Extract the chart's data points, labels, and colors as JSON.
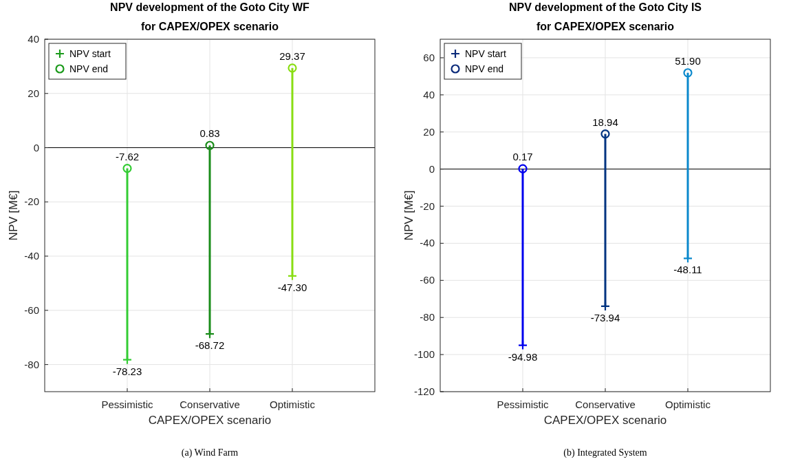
{
  "chart_data": [
    {
      "type": "bar",
      "title": "NPV development of the Goto City WF\nfor CAPEX/OPEX scenario",
      "xlabel": "CAPEX/OPEX scenario",
      "ylabel": "NPV [M€]",
      "categories": [
        "Pessimistic",
        "Conservative",
        "Optimistic"
      ],
      "ylim": [
        -90,
        40
      ],
      "yticks": [
        -80,
        -60,
        -40,
        -20,
        0,
        20,
        40
      ],
      "grid": true,
      "legend": "top left",
      "ref_lines": [
        {
          "axis": "y",
          "value": 0,
          "color": "#000000"
        }
      ],
      "annotations": [
        "(a) Wind Farm"
      ],
      "series": [
        {
          "colors": [
            "#33cc33",
            "#1a8c1a",
            "#88dd11"
          ],
          "base": [
            -78.23,
            -68.72,
            -47.3
          ],
          "values": [
            70.61,
            69.55,
            76.67
          ]
        },
        {
          "type": "scatter",
          "name": "NPV start",
          "marker": "cross",
          "color": "#1a9a1a",
          "colors": [
            "#33cc33",
            "#1a8c1a",
            "#88dd11"
          ],
          "x": [
            "Pessimistic",
            "Conservative",
            "Optimistic"
          ],
          "values": [
            -78.23,
            -68.72,
            -47.3
          ],
          "value_labels": [
            "-78.23",
            "-68.72",
            "-47.30"
          ]
        },
        {
          "type": "scatter",
          "name": "NPV end",
          "marker": "circle",
          "color": "#1a9a1a",
          "colors": [
            "#33cc33",
            "#1a8c1a",
            "#88dd11"
          ],
          "x": [
            "Pessimistic",
            "Conservative",
            "Optimistic"
          ],
          "values": [
            -7.62,
            0.83,
            29.37
          ],
          "value_labels": [
            "-7.62",
            "0.83",
            "29.37"
          ]
        }
      ]
    },
    {
      "type": "bar",
      "title": "NPV development of the Goto City IS\nfor CAPEX/OPEX scenario",
      "xlabel": "CAPEX/OPEX scenario",
      "ylabel": "NPV [M€]",
      "categories": [
        "Pessimistic",
        "Conservative",
        "Optimistic"
      ],
      "ylim": [
        -120,
        70
      ],
      "yticks": [
        -120,
        -100,
        -80,
        -60,
        -40,
        -20,
        0,
        20,
        40,
        60
      ],
      "grid": true,
      "legend": "top left",
      "ref_lines": [
        {
          "axis": "y",
          "value": 0,
          "color": "#000000"
        }
      ],
      "annotations": [
        "(b) Integrated System"
      ],
      "series": [
        {
          "colors": [
            "#0000ee",
            "#003380",
            "#0a88cc"
          ],
          "base": [
            -94.98,
            -73.94,
            -48.11
          ],
          "values": [
            95.15,
            92.88,
            100.01
          ]
        },
        {
          "type": "scatter",
          "name": "NPV start",
          "marker": "cross",
          "color": "#0a2a7a",
          "colors": [
            "#0000ee",
            "#003380",
            "#0a88cc"
          ],
          "x": [
            "Pessimistic",
            "Conservative",
            "Optimistic"
          ],
          "values": [
            -94.98,
            -73.94,
            -48.11
          ],
          "value_labels": [
            "-94.98",
            "-73.94",
            "-48.11"
          ]
        },
        {
          "type": "scatter",
          "name": "NPV end",
          "marker": "circle",
          "color": "#0a2a7a",
          "colors": [
            "#0000ee",
            "#003380",
            "#0a88cc"
          ],
          "x": [
            "Pessimistic",
            "Conservative",
            "Optimistic"
          ],
          "values": [
            0.17,
            18.94,
            51.9
          ],
          "value_labels": [
            "0.17",
            "18.94",
            "51.90"
          ]
        }
      ]
    }
  ]
}
